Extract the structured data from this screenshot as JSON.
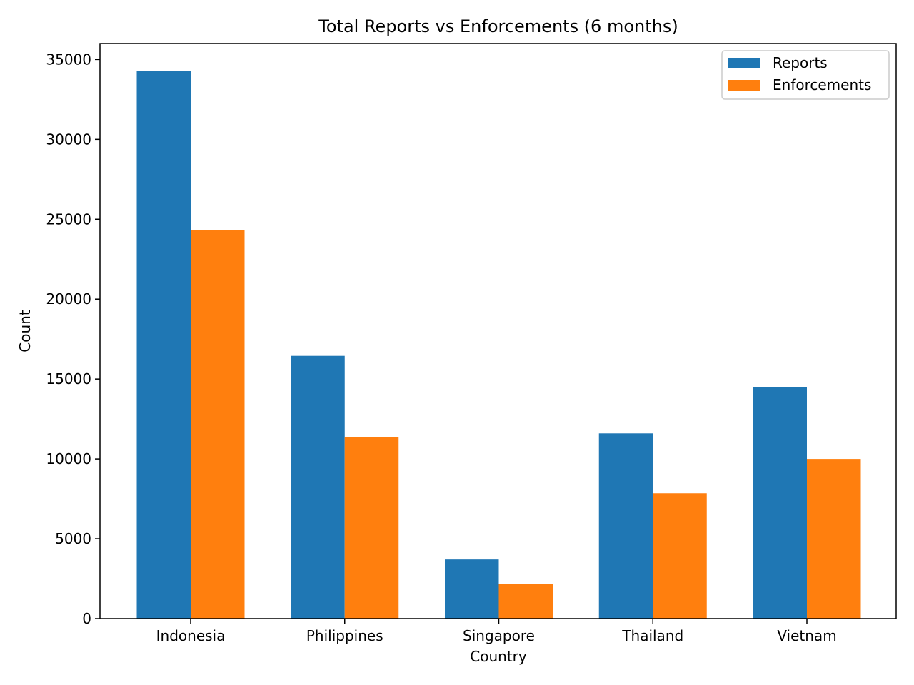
{
  "chart_data": {
    "type": "bar",
    "title": "Total Reports vs Enforcements (6 months)",
    "xlabel": "Country",
    "ylabel": "Count",
    "categories": [
      "Indonesia",
      "Philippines",
      "Singapore",
      "Thailand",
      "Vietnam"
    ],
    "series": [
      {
        "name": "Reports",
        "color": "#1f77b4",
        "values": [
          34300,
          16450,
          3700,
          11600,
          14500
        ]
      },
      {
        "name": "Enforcements",
        "color": "#ff7f0e",
        "values": [
          24300,
          11380,
          2180,
          7850,
          10000
        ]
      }
    ],
    "ylim": [
      0,
      36000
    ],
    "yticks": [
      0,
      5000,
      10000,
      15000,
      20000,
      25000,
      30000,
      35000
    ],
    "legend_position": "top-right",
    "grid": false
  }
}
